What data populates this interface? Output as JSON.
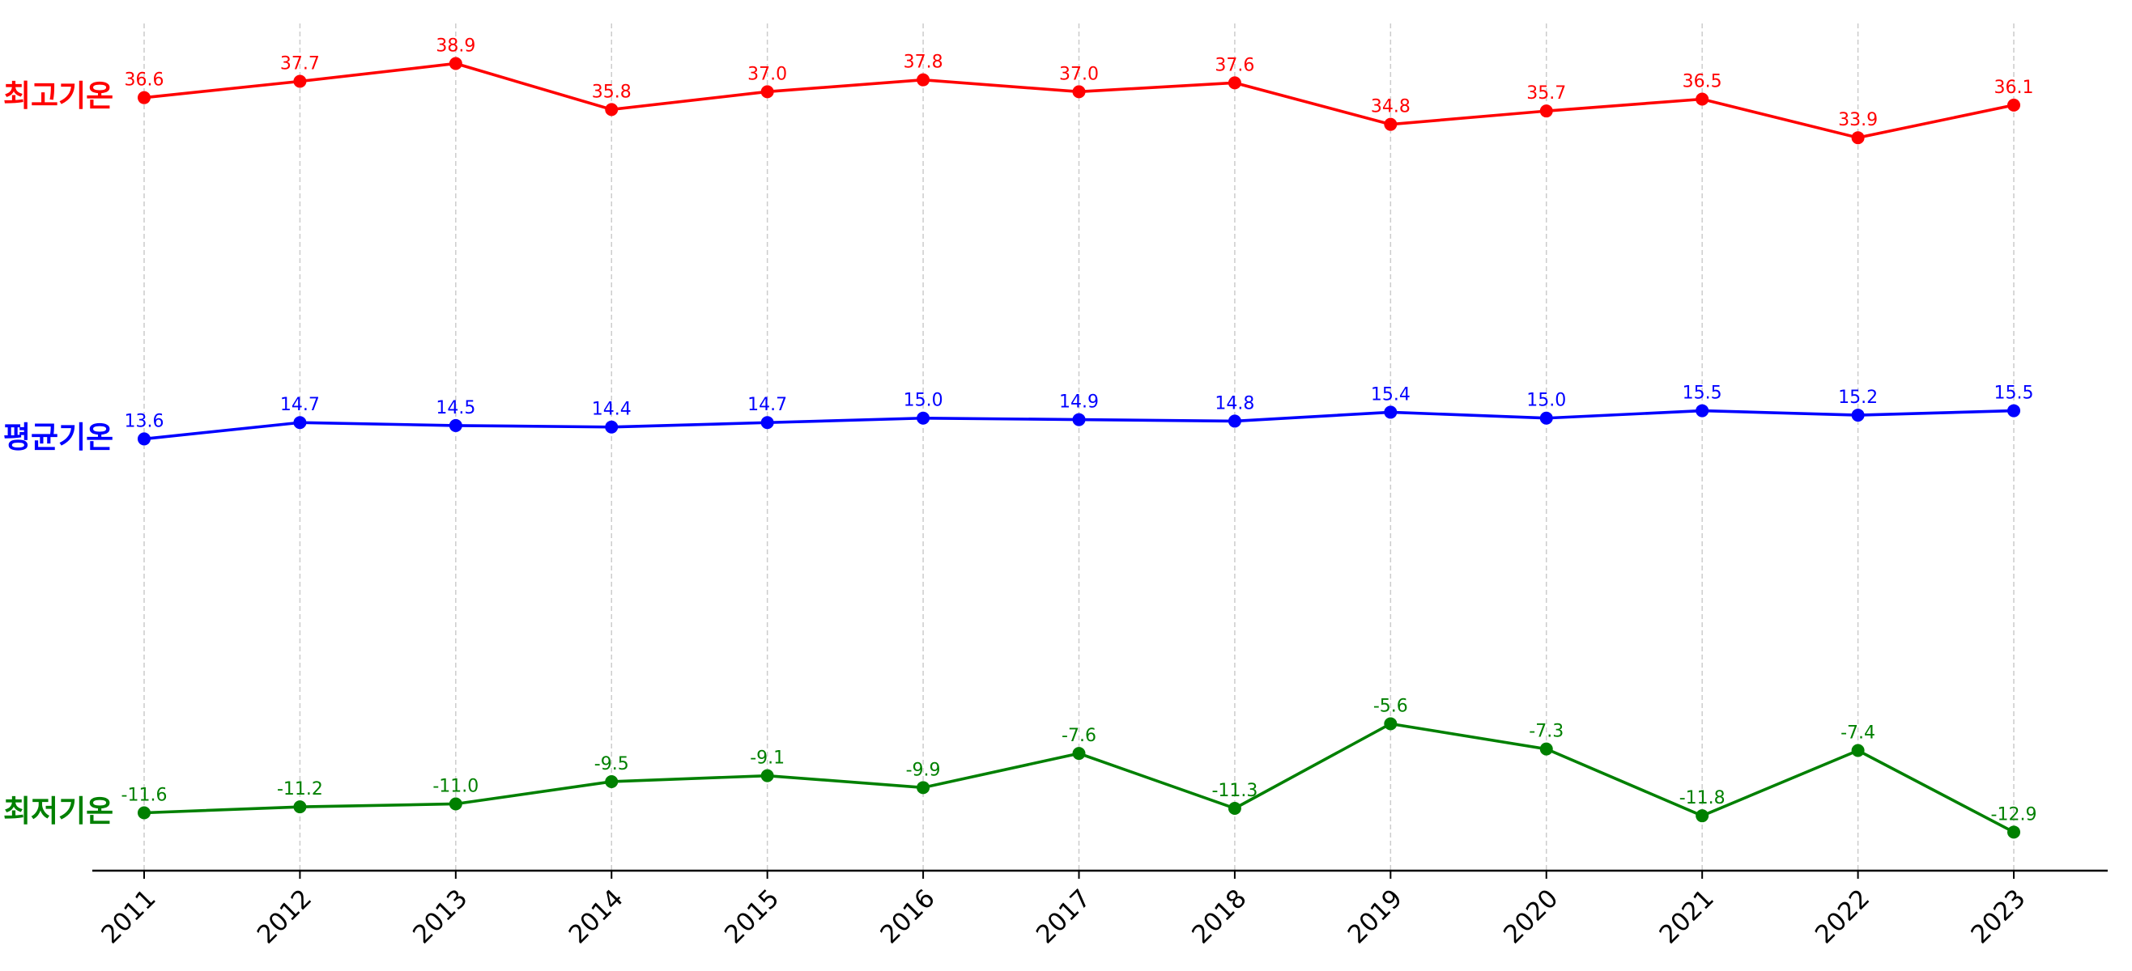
{
  "chart_data": {
    "type": "line",
    "categories": [
      "2011",
      "2012",
      "2013",
      "2014",
      "2015",
      "2016",
      "2017",
      "2018",
      "2019",
      "2020",
      "2021",
      "2022",
      "2023"
    ],
    "series": [
      {
        "name": "최고기온",
        "color": "#ff0000",
        "values": [
          36.6,
          37.7,
          38.9,
          35.8,
          37,
          37.8,
          37,
          37.6,
          34.8,
          35.7,
          36.5,
          33.9,
          36.1
        ],
        "value_labels": [
          "36.6",
          "37.7",
          "38.9",
          "35.8",
          "37.0",
          "37.8",
          "37.0",
          "37.6",
          "34.8",
          "35.7",
          "36.5",
          "33.9",
          "36.1"
        ]
      },
      {
        "name": "평균기온",
        "color": "#0000ff",
        "values": [
          13.6,
          14.7,
          14.5,
          14.4,
          14.7,
          15,
          14.9,
          14.8,
          15.4,
          15,
          15.5,
          15.2,
          15.5
        ],
        "value_labels": [
          "13.6",
          "14.7",
          "14.5",
          "14.4",
          "14.7",
          "15.0",
          "14.9",
          "14.8",
          "15.4",
          "15.0",
          "15.5",
          "15.2",
          "15.5"
        ]
      },
      {
        "name": "최저기온",
        "color": "#008000",
        "values": [
          -11.6,
          -11.2,
          -11,
          -9.5,
          -9.1,
          -9.9,
          -7.6,
          -11.3,
          -5.6,
          -7.3,
          -11.8,
          -7.4,
          -12.9
        ],
        "value_labels": [
          "-11.6",
          "-11.2",
          "-11.0",
          "-9.5",
          "-9.1",
          "-9.9",
          "-7.6",
          "-11.3",
          "-5.6",
          "-7.3",
          "-11.8",
          "-7.4",
          "-12.9"
        ]
      }
    ],
    "ylim": [
      -15.5,
      41.6
    ],
    "grid": true
  }
}
